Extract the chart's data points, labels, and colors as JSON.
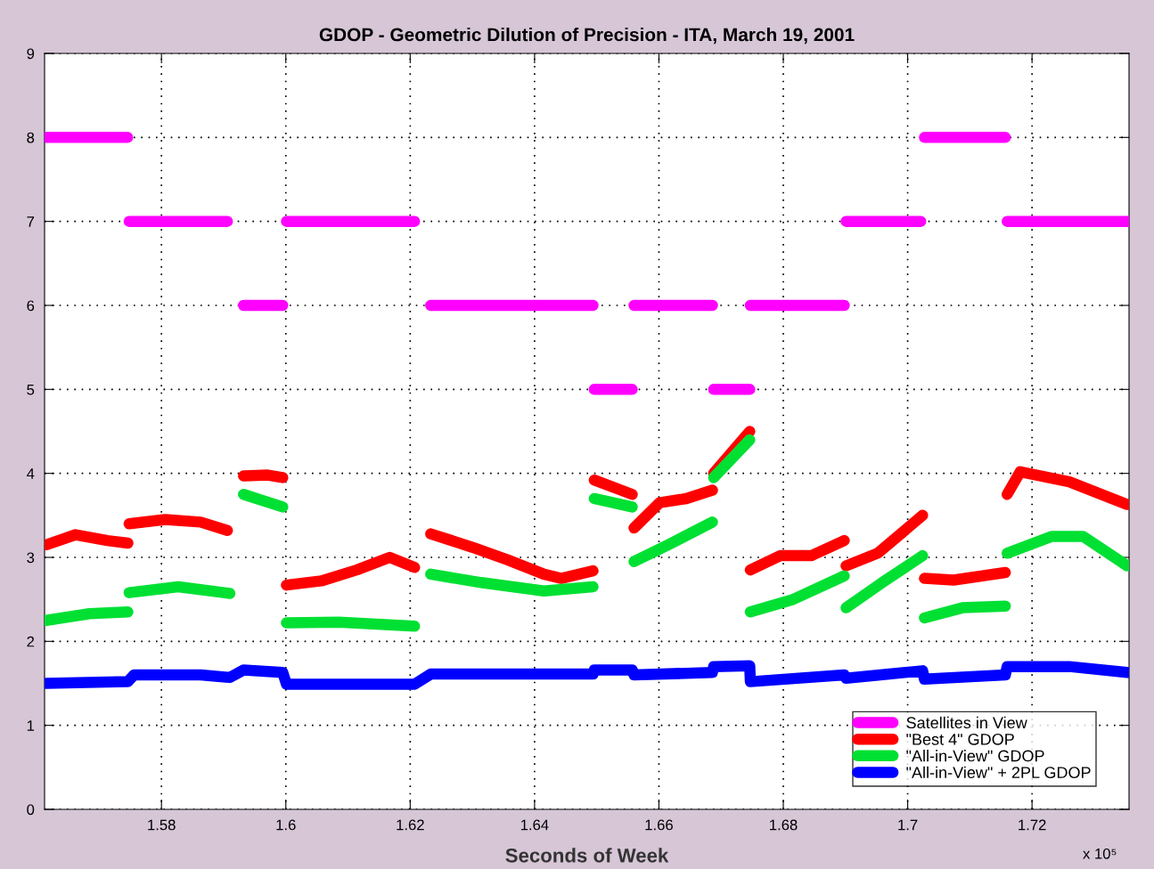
{
  "chart_data": {
    "type": "line",
    "title": "GDOP - Geometric Dilution of Precision - ITA, March 19, 2001",
    "xlabel": "Seconds of Week",
    "annotations": [
      "x 10⁵"
    ],
    "xlim": [
      1.5612,
      1.7356
    ],
    "ylim": [
      0,
      9
    ],
    "xticks": [
      1.58,
      1.6,
      1.62,
      1.64,
      1.66,
      1.68,
      1.7,
      1.72
    ],
    "yticks": [
      0,
      1,
      2,
      3,
      4,
      5,
      6,
      7,
      8,
      9
    ],
    "grid": true,
    "legend": "bottom right",
    "line_style": "solid",
    "series": [
      {
        "name": "Satellites in View",
        "color": "#ff00ff",
        "x": [
          1.5615,
          1.57455,
          1.5747,
          1.5748,
          1.5906,
          1.5919,
          1.5932,
          1.5995,
          1.5998,
          1.6001,
          1.6207,
          1.622,
          1.6233,
          1.6494,
          1.6495,
          1.6496,
          1.6557,
          1.65585,
          1.656,
          1.6686,
          1.6687,
          1.6688,
          1.6746,
          1.67465,
          1.6747,
          1.6898,
          1.68995,
          1.6901,
          1.7021,
          1.7024,
          1.7027,
          1.7157,
          1.71585,
          1.716,
          1.7356
        ],
        "values": [
          8,
          8,
          null,
          7,
          7,
          null,
          6,
          6,
          null,
          7,
          7,
          null,
          6,
          6,
          null,
          5,
          5,
          null,
          6,
          6,
          null,
          5,
          5,
          null,
          6,
          6,
          null,
          7,
          7,
          null,
          8,
          8,
          null,
          7,
          7
        ]
      },
      {
        "name": "\"Best 4\" GDOP",
        "color": "#ff0000",
        "x": [
          1.5615,
          1.5662,
          1.5713,
          1.5746,
          1.5747,
          1.5748,
          1.5806,
          1.5863,
          1.5906,
          1.5919,
          1.5932,
          1.5971,
          1.5995,
          1.5998,
          1.6001,
          1.6057,
          1.6114,
          1.6167,
          1.6207,
          1.622,
          1.6233,
          1.63,
          1.6357,
          1.6415,
          1.6443,
          1.6494,
          1.6495,
          1.6496,
          1.6557,
          1.65585,
          1.656,
          1.6601,
          1.6644,
          1.6686,
          1.6687,
          1.6688,
          1.6746,
          1.67465,
          1.6747,
          1.6795,
          1.6845,
          1.6898,
          1.68995,
          1.6901,
          1.6952,
          1.7024,
          1.70255,
          1.7027,
          1.7074,
          1.7157,
          1.71585,
          1.716,
          1.7181,
          1.726,
          1.7353
        ],
        "values": [
          3.15,
          3.27,
          3.2,
          3.17,
          null,
          3.4,
          3.45,
          3.42,
          3.32,
          null,
          3.97,
          3.98,
          3.95,
          null,
          2.67,
          2.72,
          2.85,
          3.0,
          2.88,
          null,
          3.28,
          3.12,
          2.97,
          2.8,
          2.75,
          2.84,
          null,
          3.92,
          3.75,
          null,
          3.35,
          3.65,
          3.7,
          3.8,
          null,
          4.0,
          4.5,
          null,
          2.85,
          3.02,
          3.02,
          3.2,
          null,
          2.9,
          3.05,
          3.5,
          null,
          2.75,
          2.73,
          2.82,
          null,
          3.75,
          4.02,
          3.9,
          3.63
        ]
      },
      {
        "name": "\"All-in-View\" GDOP",
        "color": "#00e033",
        "x": [
          1.5615,
          1.5684,
          1.5746,
          1.5747,
          1.5748,
          1.5827,
          1.591,
          1.5921,
          1.5932,
          1.5995,
          1.5998,
          1.6001,
          1.6085,
          1.6207,
          1.622,
          1.6233,
          1.6314,
          1.6415,
          1.6494,
          1.6495,
          1.6496,
          1.6557,
          1.65585,
          1.656,
          1.6615,
          1.6686,
          1.6687,
          1.6688,
          1.6746,
          1.67465,
          1.6747,
          1.6816,
          1.6898,
          1.68995,
          1.6901,
          1.6959,
          1.7024,
          1.70255,
          1.7027,
          1.7088,
          1.7157,
          1.71585,
          1.716,
          1.7232,
          1.7282,
          1.7353
        ],
        "values": [
          2.25,
          2.33,
          2.35,
          null,
          2.58,
          2.65,
          2.57,
          null,
          3.75,
          3.6,
          null,
          2.22,
          2.23,
          2.18,
          null,
          2.8,
          2.7,
          2.6,
          2.65,
          null,
          3.7,
          3.6,
          null,
          2.95,
          3.15,
          3.42,
          null,
          3.95,
          4.4,
          null,
          2.35,
          2.5,
          2.78,
          null,
          2.4,
          2.7,
          3.02,
          null,
          2.28,
          2.4,
          2.42,
          null,
          3.05,
          3.25,
          3.25,
          2.9
        ]
      },
      {
        "name": "\"All-in-View\" + 2PL GDOP",
        "color": "#0000ff",
        "x": [
          1.5615,
          1.5746,
          1.5756,
          1.5863,
          1.591,
          1.5932,
          1.5995,
          1.6001,
          1.6207,
          1.6233,
          1.6494,
          1.6496,
          1.6557,
          1.656,
          1.6686,
          1.6688,
          1.6746,
          1.6747,
          1.6898,
          1.6901,
          1.7024,
          1.7027,
          1.7157,
          1.716,
          1.726,
          1.7353
        ],
        "values": [
          1.5,
          1.52,
          1.6,
          1.6,
          1.57,
          1.66,
          1.63,
          1.49,
          1.49,
          1.61,
          1.61,
          1.66,
          1.66,
          1.6,
          1.63,
          1.7,
          1.71,
          1.52,
          1.6,
          1.56,
          1.65,
          1.55,
          1.6,
          1.7,
          1.7,
          1.63
        ]
      }
    ]
  }
}
